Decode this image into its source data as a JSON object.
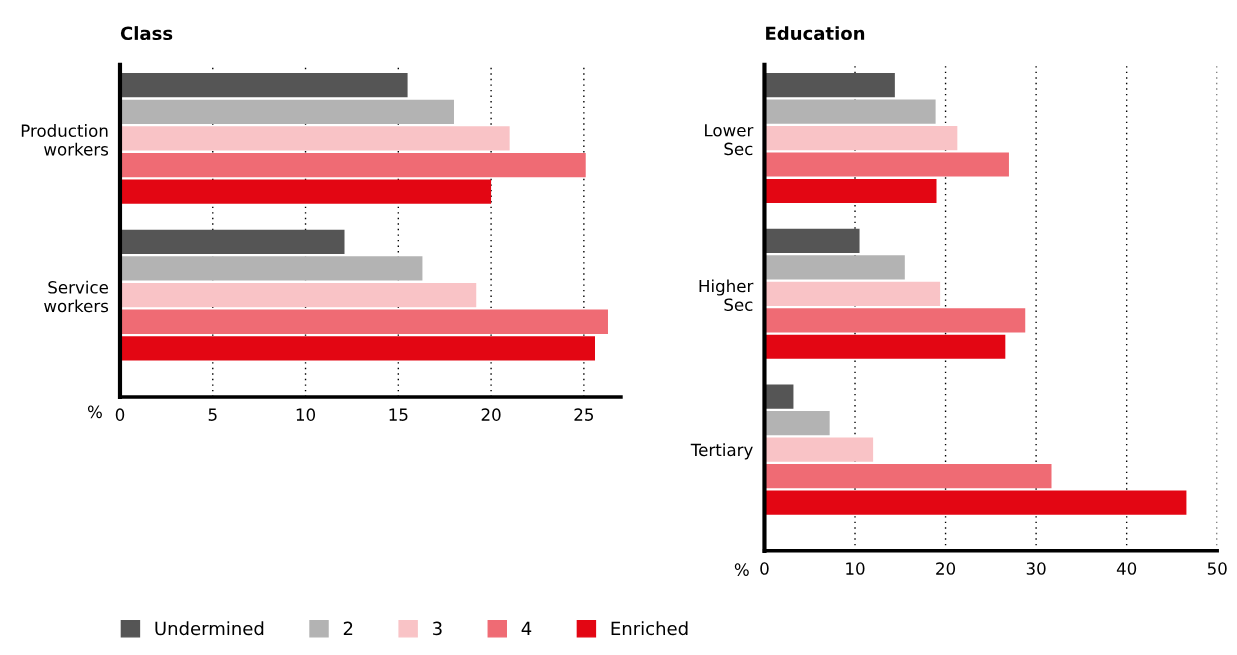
{
  "chart_data": [
    {
      "type": "bar",
      "orientation": "horizontal",
      "title": "Class",
      "xlabel": "%",
      "categories": [
        "Production\nworkers",
        "Service\nworkers"
      ],
      "series": [
        {
          "name": "Undermined",
          "color": "#555555",
          "values": [
            15.5,
            12.1
          ]
        },
        {
          "name": "2",
          "color": "#b3b3b3",
          "values": [
            18.0,
            16.3
          ]
        },
        {
          "name": "3",
          "color": "#f9c3c6",
          "values": [
            21.0,
            19.2
          ]
        },
        {
          "name": "4",
          "color": "#ef6b74",
          "values": [
            25.1,
            26.3
          ]
        },
        {
          "name": "Enriched",
          "color": "#e30613",
          "values": [
            20.0,
            25.6
          ]
        }
      ],
      "xlim": [
        0,
        27
      ],
      "xticks": [
        0,
        5,
        10,
        15,
        20,
        25
      ],
      "grid": "x",
      "legend": "bottom"
    },
    {
      "type": "bar",
      "orientation": "horizontal",
      "title": "Education",
      "xlabel": "%",
      "categories": [
        "Lower\nSec",
        "Higher\nSec",
        "Tertiary"
      ],
      "series": [
        {
          "name": "Undermined",
          "color": "#555555",
          "values": [
            14.4,
            10.5,
            3.2
          ]
        },
        {
          "name": "2",
          "color": "#b3b3b3",
          "values": [
            18.9,
            15.5,
            7.2
          ]
        },
        {
          "name": "3",
          "color": "#f9c3c6",
          "values": [
            21.3,
            19.4,
            12.0
          ]
        },
        {
          "name": "4",
          "color": "#ef6b74",
          "values": [
            27.0,
            28.8,
            31.7
          ]
        },
        {
          "name": "Enriched",
          "color": "#e30613",
          "values": [
            19.0,
            26.6,
            46.6
          ]
        }
      ],
      "xlim": [
        0,
        50
      ],
      "xticks": [
        0,
        10,
        20,
        30,
        40,
        50
      ],
      "grid": "x"
    }
  ]
}
